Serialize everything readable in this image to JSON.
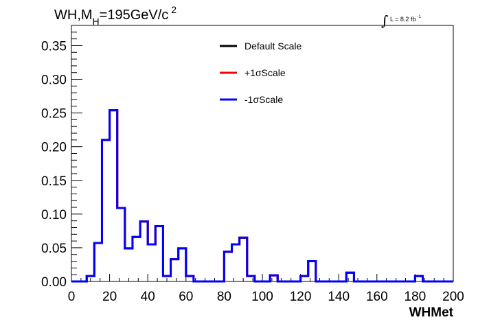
{
  "chart_data": {
    "type": "line",
    "title": {
      "main": "WH,M",
      "sub": "H",
      "rest": "=195GeV/c",
      "sup": "2"
    },
    "lumi": {
      "text": "L = 8.2 fb",
      "sup": "-1"
    },
    "xlabel": "WHMet",
    "ylabel": "",
    "xlim": [
      0,
      200
    ],
    "ylim": [
      0,
      0.38
    ],
    "xticks": [
      0,
      20,
      40,
      60,
      80,
      100,
      120,
      140,
      160,
      180,
      200
    ],
    "xtick_labels": [
      "0",
      "20",
      "40",
      "60",
      "80",
      "100",
      "120",
      "140",
      "160",
      "180",
      "200"
    ],
    "yticks": [
      0,
      0.05,
      0.1,
      0.15,
      0.2,
      0.25,
      0.3,
      0.35
    ],
    "ytick_labels": [
      "0.00",
      "0.05",
      "0.10",
      "0.15",
      "0.20",
      "0.25",
      "0.30",
      "0.35"
    ],
    "bin_width": 4,
    "bin_edges_start": 0,
    "legend_position": "top-center",
    "legend_entries": [
      {
        "label": "Default Scale",
        "color": "#000000"
      },
      {
        "label": "+1σScale",
        "color": "#ff0000"
      },
      {
        "label": "-1σScale",
        "color": "#0000ff"
      }
    ],
    "series": [
      {
        "name": "Default Scale",
        "color": "#000000",
        "values": [
          0.0,
          0.0,
          0.008,
          0.057,
          0.21,
          0.254,
          0.109,
          0.049,
          0.066,
          0.089,
          0.055,
          0.082,
          0.008,
          0.033,
          0.049,
          0.008,
          0.0,
          0.0,
          0.0,
          0.0,
          0.044,
          0.055,
          0.065,
          0.008,
          0.0,
          0.0,
          0.009,
          0.0,
          0.0,
          0.0,
          0.008,
          0.03,
          0.0,
          0.0,
          0.0,
          0.0,
          0.013,
          0.0,
          0.0,
          0.0,
          0.0,
          0.0,
          0.0,
          0.0,
          0.0,
          0.008,
          0.0,
          0.0,
          0.0,
          0.0
        ]
      },
      {
        "name": "+1σScale",
        "color": "#ff0000",
        "values": [
          0.0,
          0.0,
          0.008,
          0.057,
          0.21,
          0.254,
          0.109,
          0.049,
          0.066,
          0.089,
          0.055,
          0.082,
          0.008,
          0.033,
          0.049,
          0.008,
          0.0,
          0.0,
          0.0,
          0.0,
          0.044,
          0.055,
          0.065,
          0.008,
          0.0,
          0.0,
          0.009,
          0.0,
          0.0,
          0.0,
          0.008,
          0.03,
          0.0,
          0.0,
          0.0,
          0.0,
          0.013,
          0.0,
          0.0,
          0.0,
          0.0,
          0.0,
          0.0,
          0.0,
          0.0,
          0.008,
          0.0,
          0.0,
          0.0,
          0.0
        ]
      },
      {
        "name": "-1σScale",
        "color": "#0000ff",
        "values": [
          0.0,
          0.0,
          0.008,
          0.057,
          0.21,
          0.254,
          0.109,
          0.049,
          0.066,
          0.089,
          0.055,
          0.082,
          0.008,
          0.033,
          0.049,
          0.008,
          0.0,
          0.0,
          0.0,
          0.0,
          0.044,
          0.055,
          0.065,
          0.008,
          0.0,
          0.0,
          0.009,
          0.0,
          0.0,
          0.0,
          0.008,
          0.03,
          0.0,
          0.0,
          0.0,
          0.0,
          0.013,
          0.0,
          0.0,
          0.0,
          0.0,
          0.0,
          0.0,
          0.0,
          0.0,
          0.008,
          0.0,
          0.0,
          0.0,
          0.0
        ]
      }
    ]
  }
}
